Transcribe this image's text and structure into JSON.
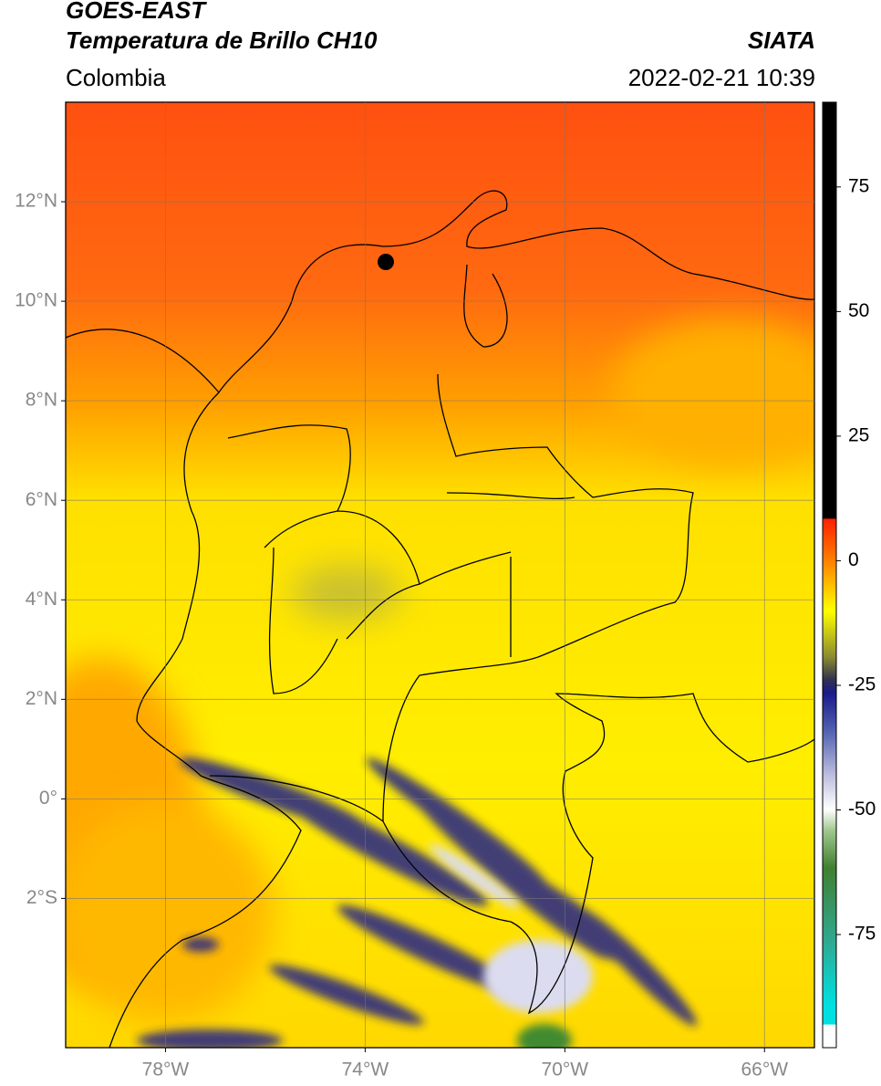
{
  "header": {
    "title_line1": "GOES-EAST",
    "title_line2": "Temperatura de Brillo CH10",
    "agency": "SIATA",
    "region": "Colombia",
    "datetime": "2022-02-21 10:39"
  },
  "map": {
    "lon_lim": [
      -80,
      -65
    ],
    "lat_lim": [
      -5,
      14
    ],
    "grid": true,
    "lat_ticks": [
      {
        "value": 12,
        "label": "12°N"
      },
      {
        "value": 10,
        "label": "10°N"
      },
      {
        "value": 8,
        "label": "8°N"
      },
      {
        "value": 6,
        "label": "6°N"
      },
      {
        "value": 4,
        "label": "4°N"
      },
      {
        "value": 2,
        "label": "2°N"
      },
      {
        "value": 0,
        "label": "0°"
      },
      {
        "value": -2,
        "label": "2°S"
      }
    ],
    "lon_ticks": [
      {
        "value": -78,
        "label": "78°W"
      },
      {
        "value": -74,
        "label": "74°W"
      },
      {
        "value": -70,
        "label": "70°W"
      },
      {
        "value": -66,
        "label": "66°W"
      }
    ]
  },
  "colorbar": {
    "lim": [
      -97.7,
      92
    ],
    "ticks": [
      75,
      50,
      25,
      0,
      -25,
      -50,
      -75
    ]
  }
}
